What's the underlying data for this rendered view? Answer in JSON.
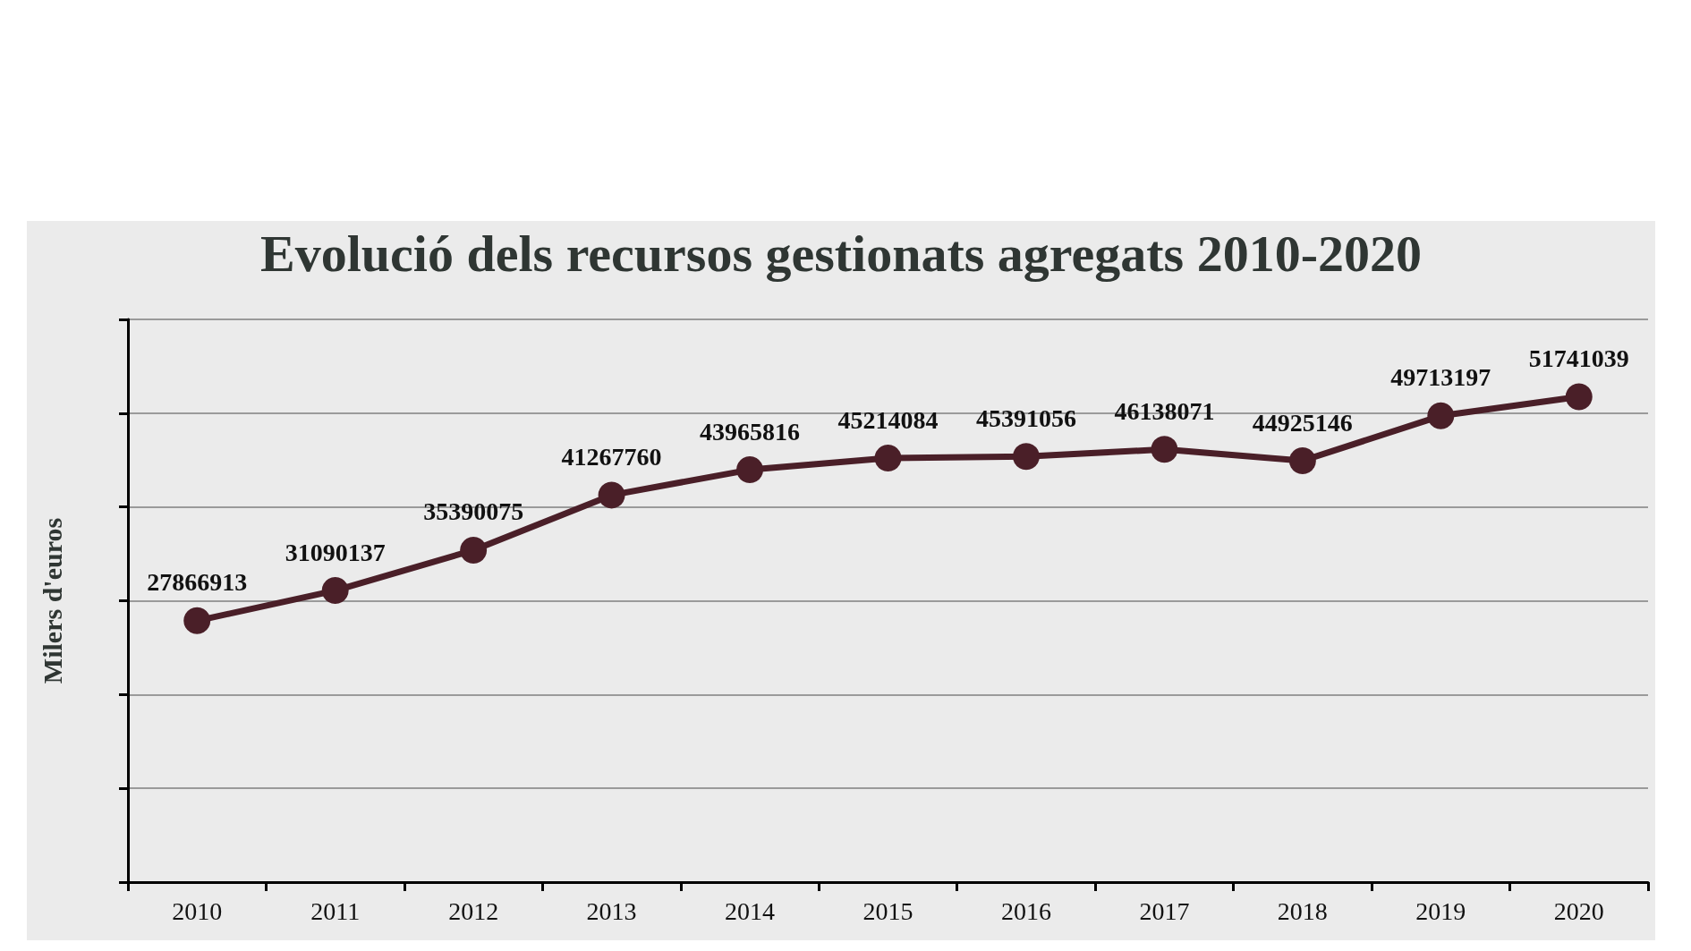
{
  "chart_data": {
    "type": "line",
    "title": "Evolució dels recursos gestionats agregats 2010-2020",
    "ylabel": "Milers d'euros",
    "categories": [
      "2010",
      "2011",
      "2012",
      "2013",
      "2014",
      "2015",
      "2016",
      "2017",
      "2018",
      "2019",
      "2020"
    ],
    "series": [
      {
        "color": "#4a1f28",
        "values": [
          27866913,
          31090137,
          35390075,
          41267760,
          43965816,
          45214084,
          45391056,
          46138071,
          44925146,
          49713197,
          51741039
        ]
      }
    ],
    "ylim": [
      0,
      60000000
    ],
    "yticks": [
      {
        "value": 0,
        "label": null
      },
      {
        "value": 10000000,
        "label": null
      },
      {
        "value": 20000000,
        "label": null
      },
      {
        "value": 30000000,
        "label": null
      },
      {
        "value": 40000000,
        "label": null
      },
      {
        "value": 50000000,
        "label": null
      },
      {
        "value": 60000000,
        "label": null
      }
    ],
    "tick_labels": "x",
    "grid": "y",
    "marker": "circle",
    "line_style": "solid",
    "data_labels": true
  }
}
